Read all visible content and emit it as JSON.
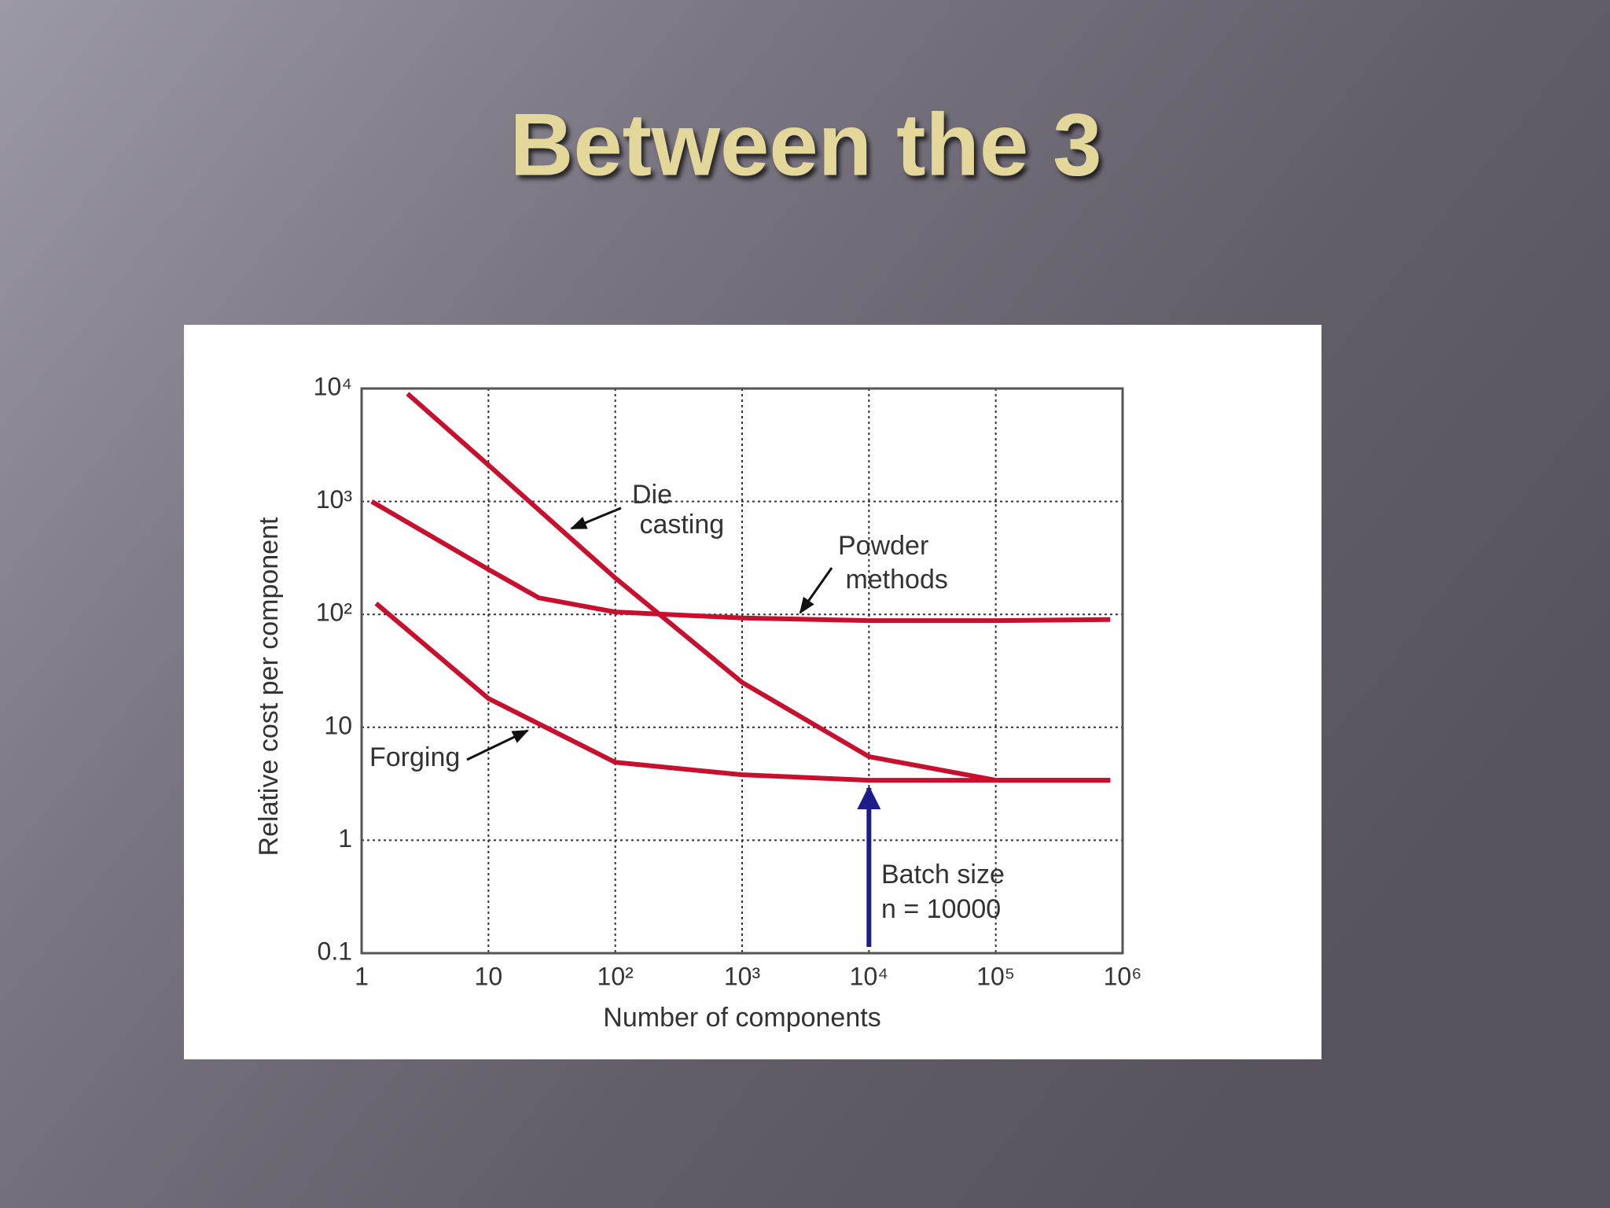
{
  "slide_title": "Between the 3",
  "chart_data": {
    "type": "line",
    "x_label": "Number of components",
    "y_label": "Relative cost per component",
    "log_x": true,
    "log_y": true,
    "grid": true,
    "xlim": [
      1,
      1000000
    ],
    "xticks": [
      1,
      10,
      {
        "value": 100,
        "label": "10²"
      },
      {
        "value": 1000,
        "label": "10³"
      },
      {
        "value": 10000,
        "label": "10⁴"
      },
      {
        "value": 100000,
        "label": "10⁵"
      },
      {
        "value": 1000000,
        "label": "10⁶"
      }
    ],
    "ylim": [
      0.1,
      10000
    ],
    "yticks": [
      0.1,
      1,
      10,
      {
        "value": 100,
        "label": "10²"
      },
      {
        "value": 1000,
        "label": "10³"
      },
      {
        "value": 10000,
        "label": "10⁴"
      }
    ],
    "series": [
      {
        "name": "Die casting",
        "color": "#c8102e",
        "x": [
          2.3,
          10,
          100,
          1000,
          10000,
          100000,
          800000
        ],
        "values": [
          9000,
          2100,
          210,
          25,
          5.5,
          3.4,
          3.4
        ]
      },
      {
        "name": "Powder methods",
        "color": "#c8102e",
        "x": [
          1.2,
          10,
          25,
          100,
          1000,
          10000,
          100000,
          800000
        ],
        "values": [
          1000,
          250,
          140,
          105,
          93,
          88,
          88,
          90
        ]
      },
      {
        "name": "Forging",
        "color": "#c8102e",
        "x": [
          1.3,
          10,
          100,
          1000,
          10000,
          100000,
          800000
        ],
        "values": [
          125,
          18,
          4.9,
          3.8,
          3.4,
          3.4,
          3.4
        ]
      }
    ],
    "batch": {
      "x": 10000,
      "label": "Batch size",
      "formula": "n = 10000",
      "color": "#1c1c8a"
    }
  }
}
